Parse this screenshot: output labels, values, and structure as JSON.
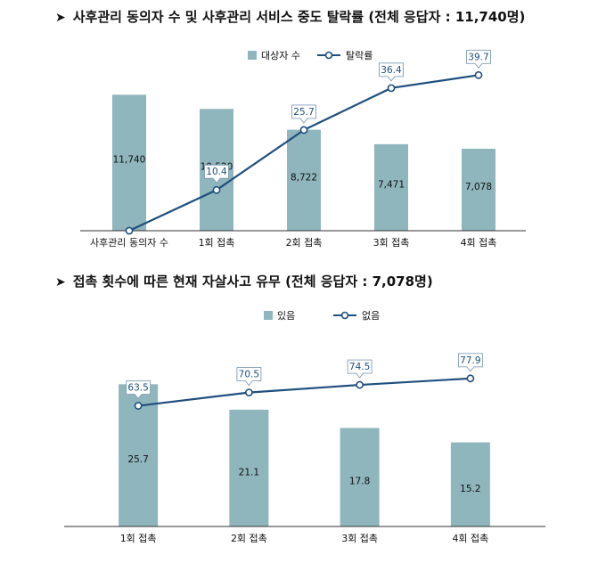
{
  "headings": [
    {
      "marker": "➤",
      "text": "사후관리 동의자 수 및 사후관리 서비스 중도 탈락률 (전체 응답자 : 11,740명)"
    },
    {
      "marker": "➤",
      "text": "접촉 횟수에 따른 현재 자살사고 유무 (전체 응답자 : 7,078명)"
    }
  ],
  "colors": {
    "bar": "#8fb5bd",
    "line": "#1e4f7e",
    "text": "#111111",
    "axis": "#333333"
  },
  "chart_data": [
    {
      "type": "bar+line",
      "categories": [
        "사후관리 동의자 수",
        "1회 접촉",
        "2회 접촉",
        "3회 접촉",
        "4회 접촉"
      ],
      "series": [
        {
          "name": "대상자 수",
          "type": "bar",
          "values": [
            11740,
            10520,
            8722,
            7471,
            7078
          ],
          "labels": [
            "11,740",
            "10,520",
            "8,722",
            "7,471",
            "7,078"
          ]
        },
        {
          "name": "탈락률",
          "type": "line",
          "values": [
            0,
            10.4,
            25.7,
            36.4,
            39.7
          ],
          "labels": [
            "",
            "10.4",
            "25.7",
            "36.4",
            "39.7"
          ]
        }
      ],
      "bar_ylim": [
        0,
        14000
      ],
      "line_ylim": [
        0,
        45
      ],
      "legend": "top-center"
    },
    {
      "type": "bar+line",
      "categories": [
        "1회 접촉",
        "2회 접촉",
        "3회 접촉",
        "4회 접촉"
      ],
      "series": [
        {
          "name": "있음",
          "type": "bar",
          "values": [
            25.7,
            21.1,
            17.8,
            15.2
          ],
          "labels": [
            "25.7",
            "21.1",
            "17.8",
            "15.2"
          ]
        },
        {
          "name": "없음",
          "type": "line",
          "values": [
            63.5,
            70.5,
            74.5,
            77.9
          ],
          "labels": [
            "63.5",
            "70.5",
            "74.5",
            "77.9"
          ]
        }
      ],
      "bar_ylim": [
        0,
        33
      ],
      "line_ylim": [
        0,
        90
      ],
      "legend": "top-center"
    }
  ]
}
